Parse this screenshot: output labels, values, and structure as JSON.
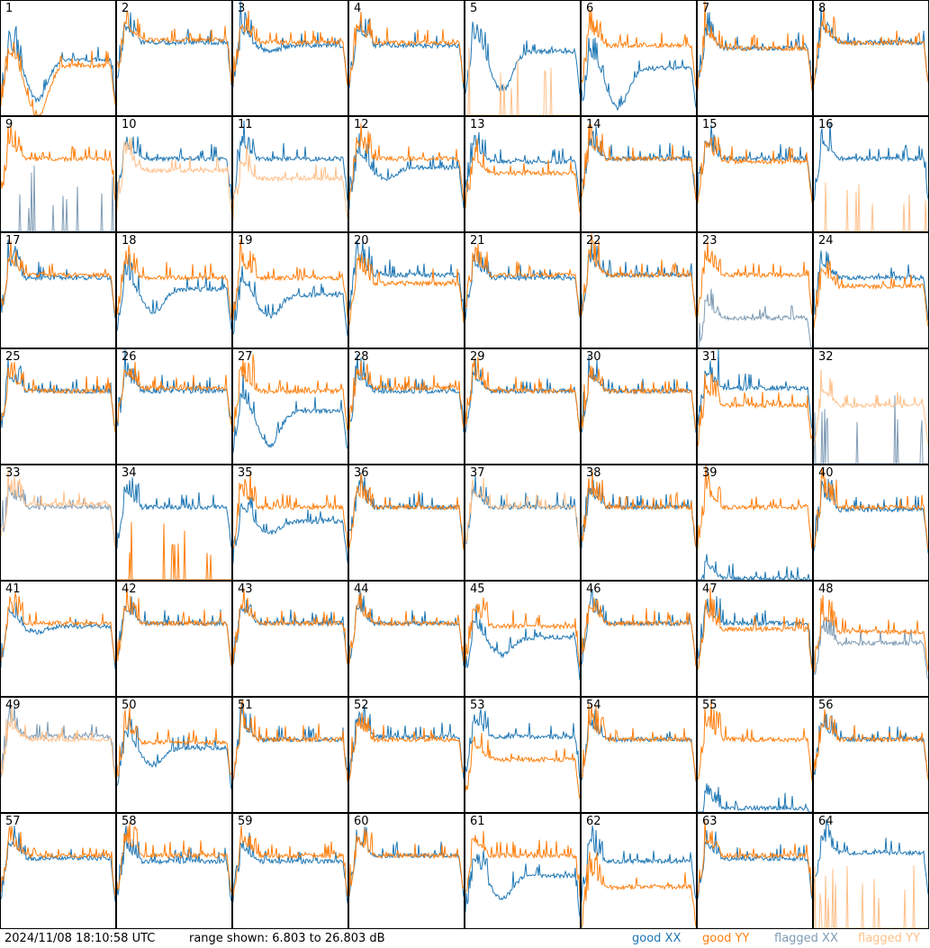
{
  "footer": {
    "timestamp": "2024/11/08 18:10:58 UTC",
    "range": "range shown: 6.803 to 26.803 dB",
    "legend": {
      "good_xx": "good XX",
      "good_yy": "good YY",
      "flagged_xx": "flagged XX",
      "flagged_yy": "flagged YY"
    }
  },
  "colors": {
    "good_xx": "#1f77b4",
    "good_yy": "#ff7f0e",
    "flagged_xx": "#7f9bb4",
    "flagged_yy": "#ffc08a"
  },
  "chart_data": {
    "type": "line",
    "ylim": [
      6.803,
      26.803
    ],
    "grid": false,
    "legend_placement": "bottom-right",
    "layout": {
      "rows": 8,
      "cols": 8
    },
    "panels": [
      {
        "label": "1",
        "xx": "good",
        "yy": "good",
        "xx_level": 16.5,
        "yy_level": 15.5,
        "xx_dip": 7,
        "yy_dip": 9
      },
      {
        "label": "2",
        "xx": "good",
        "yy": "good",
        "xx_level": 19.5,
        "yy_level": 20,
        "xx_dip": 0,
        "yy_dip": 0
      },
      {
        "label": "3",
        "xx": "good",
        "yy": "good",
        "xx_level": 19,
        "yy_level": 19.5,
        "xx_dip": 1,
        "yy_dip": 0
      },
      {
        "label": "4",
        "xx": "good",
        "yy": "good",
        "xx_level": 19,
        "yy_level": 19.5,
        "xx_dip": 0,
        "yy_dip": 0
      },
      {
        "label": "5",
        "xx": "good",
        "yy": "flagged_spikes_good",
        "xx_level": 18,
        "yy_level": 7,
        "xx_dip": 7,
        "yy_dip": 0
      },
      {
        "label": "6",
        "xx": "good",
        "yy": "good",
        "xx_level": 15,
        "yy_level": 19,
        "xx_dip": 7,
        "yy_dip": 0
      },
      {
        "label": "7",
        "xx": "good",
        "yy": "good",
        "xx_level": 18.5,
        "yy_level": 18.5,
        "xx_dip": 0,
        "yy_dip": 0
      },
      {
        "label": "8",
        "xx": "good",
        "yy": "good",
        "xx_level": 19.5,
        "yy_level": 19.5,
        "xx_dip": 0,
        "yy_dip": 0
      },
      {
        "label": "9",
        "xx": "flagged",
        "yy": "good",
        "xx_level": 7.5,
        "yy_level": 19.5,
        "xx_dip": 0,
        "yy_dip": 0
      },
      {
        "label": "10",
        "xx": "good",
        "yy": "flagged",
        "xx_level": 19.5,
        "yy_level": 17.5,
        "xx_dip": 0,
        "yy_dip": 0
      },
      {
        "label": "11",
        "xx": "good",
        "yy": "flagged",
        "xx_level": 19.5,
        "yy_level": 16,
        "xx_dip": 0,
        "yy_dip": 0
      },
      {
        "label": "12",
        "xx": "good",
        "yy": "good",
        "xx_level": 18,
        "yy_level": 19.5,
        "xx_dip": 2,
        "yy_dip": 0
      },
      {
        "label": "13",
        "xx": "good",
        "yy": "good",
        "xx_level": 19,
        "yy_level": 17,
        "xx_dip": 0,
        "yy_dip": 0
      },
      {
        "label": "14",
        "xx": "good",
        "yy": "good",
        "xx_level": 19.5,
        "yy_level": 19.5,
        "xx_dip": 0,
        "yy_dip": 0
      },
      {
        "label": "15",
        "xx": "good",
        "yy": "good",
        "xx_level": 19.5,
        "yy_level": 19,
        "xx_dip": 0,
        "yy_dip": 0
      },
      {
        "label": "16",
        "xx": "good",
        "yy": "flagged_spikes",
        "xx_level": 19.5,
        "yy_level": 7,
        "xx_dip": 0,
        "yy_dip": 0
      },
      {
        "label": "17",
        "xx": "good",
        "yy": "good",
        "xx_level": 19,
        "yy_level": 19.5,
        "xx_dip": 0,
        "yy_dip": 0
      },
      {
        "label": "18",
        "xx": "good",
        "yy": "good",
        "xx_level": 17,
        "yy_level": 19,
        "xx_dip": 4,
        "yy_dip": 0
      },
      {
        "label": "19",
        "xx": "good",
        "yy": "good",
        "xx_level": 16,
        "yy_level": 19,
        "xx_dip": 4,
        "yy_dip": 0
      },
      {
        "label": "20",
        "xx": "good",
        "yy": "good",
        "xx_level": 19.5,
        "yy_level": 18,
        "xx_dip": 0,
        "yy_dip": 0
      },
      {
        "label": "21",
        "xx": "good",
        "yy": "good",
        "xx_level": 19,
        "yy_level": 19.5,
        "xx_dip": 0,
        "yy_dip": 0
      },
      {
        "label": "22",
        "xx": "good",
        "yy": "good",
        "xx_level": 19.5,
        "yy_level": 19.5,
        "xx_dip": 0,
        "yy_dip": 0
      },
      {
        "label": "23",
        "xx": "flagged",
        "yy": "good",
        "xx_level": 12,
        "yy_level": 19.5,
        "xx_dip": 0,
        "yy_dip": 0
      },
      {
        "label": "24",
        "xx": "good",
        "yy": "good",
        "xx_level": 19,
        "yy_level": 17.5,
        "xx_dip": 0,
        "yy_dip": 0
      },
      {
        "label": "25",
        "xx": "good",
        "yy": "good",
        "xx_level": 19.5,
        "yy_level": 19.5,
        "xx_dip": 0,
        "yy_dip": 0
      },
      {
        "label": "26",
        "xx": "good",
        "yy": "good",
        "xx_level": 19.5,
        "yy_level": 20,
        "xx_dip": 0,
        "yy_dip": 0
      },
      {
        "label": "27",
        "xx": "good",
        "yy": "good",
        "xx_level": 16,
        "yy_level": 19.5,
        "xx_dip": 6,
        "yy_dip": 0
      },
      {
        "label": "28",
        "xx": "good",
        "yy": "good",
        "xx_level": 19.5,
        "yy_level": 20,
        "xx_dip": 0,
        "yy_dip": 0
      },
      {
        "label": "29",
        "xx": "good",
        "yy": "good",
        "xx_level": 19.5,
        "yy_level": 19.5,
        "xx_dip": 0,
        "yy_dip": 0
      },
      {
        "label": "30",
        "xx": "good",
        "yy": "good",
        "xx_level": 19.5,
        "yy_level": 19.5,
        "xx_dip": 0,
        "yy_dip": 0
      },
      {
        "label": "31",
        "xx": "good",
        "yy": "good",
        "xx_level": 20,
        "yy_level": 17,
        "xx_dip": 0,
        "yy_dip": 0
      },
      {
        "label": "32",
        "xx": "flagged",
        "yy": "flagged",
        "xx_level": 7,
        "yy_level": 17,
        "xx_dip": 0,
        "yy_dip": 0
      },
      {
        "label": "33",
        "xx": "flagged",
        "yy": "flagged",
        "xx_level": 19.5,
        "yy_level": 20,
        "xx_dip": 0,
        "yy_dip": 0
      },
      {
        "label": "34",
        "xx": "good",
        "yy": "good",
        "xx_level": 19.5,
        "yy_level": 7.5,
        "xx_dip": 0,
        "yy_dip": 0
      },
      {
        "label": "35",
        "xx": "good",
        "yy": "good",
        "xx_level": 17,
        "yy_level": 19.5,
        "xx_dip": 2,
        "yy_dip": 0
      },
      {
        "label": "36",
        "xx": "good",
        "yy": "good",
        "xx_level": 19.5,
        "yy_level": 19.5,
        "xx_dip": 0,
        "yy_dip": 0
      },
      {
        "label": "37",
        "xx": "good",
        "yy": "flagged",
        "xx_level": 19.5,
        "yy_level": 19.5,
        "xx_dip": 0,
        "yy_dip": 0
      },
      {
        "label": "38",
        "xx": "good",
        "yy": "good",
        "xx_level": 19.5,
        "yy_level": 19.5,
        "xx_dip": 0,
        "yy_dip": 0
      },
      {
        "label": "39",
        "xx": "good",
        "yy": "good",
        "xx_level": 7,
        "yy_level": 19.5,
        "xx_dip": 0,
        "yy_dip": 0
      },
      {
        "label": "40",
        "xx": "good",
        "yy": "good",
        "xx_level": 19,
        "yy_level": 19.5,
        "xx_dip": 0,
        "yy_dip": 0
      },
      {
        "label": "41",
        "xx": "good",
        "yy": "good",
        "xx_level": 19,
        "yy_level": 19.5,
        "xx_dip": 1,
        "yy_dip": 0
      },
      {
        "label": "42",
        "xx": "good",
        "yy": "good",
        "xx_level": 19.5,
        "yy_level": 19.5,
        "xx_dip": 0,
        "yy_dip": 0
      },
      {
        "label": "43",
        "xx": "good",
        "yy": "good",
        "xx_level": 19.5,
        "yy_level": 19.5,
        "xx_dip": 0,
        "yy_dip": 0
      },
      {
        "label": "44",
        "xx": "good",
        "yy": "good",
        "xx_level": 19.5,
        "yy_level": 19.5,
        "xx_dip": 0,
        "yy_dip": 0
      },
      {
        "label": "45",
        "xx": "good",
        "yy": "good",
        "xx_level": 17,
        "yy_level": 19,
        "xx_dip": 3,
        "yy_dip": 0
      },
      {
        "label": "46",
        "xx": "good",
        "yy": "good",
        "xx_level": 19.5,
        "yy_level": 19.5,
        "xx_dip": 0,
        "yy_dip": 0
      },
      {
        "label": "47",
        "xx": "good",
        "yy": "good",
        "xx_level": 19.5,
        "yy_level": 18.5,
        "xx_dip": 0,
        "yy_dip": 0
      },
      {
        "label": "48",
        "xx": "flagged",
        "yy": "good",
        "xx_level": 16,
        "yy_level": 18,
        "xx_dip": 0,
        "yy_dip": 0
      },
      {
        "label": "49",
        "xx": "flagged",
        "yy": "flagged",
        "xx_level": 20,
        "yy_level": 19.5,
        "xx_dip": 0,
        "yy_dip": 0
      },
      {
        "label": "50",
        "xx": "good",
        "yy": "good",
        "xx_level": 18,
        "yy_level": 19,
        "xx_dip": 3,
        "yy_dip": 0
      },
      {
        "label": "51",
        "xx": "good",
        "yy": "good",
        "xx_level": 19.5,
        "yy_level": 19.5,
        "xx_dip": 0,
        "yy_dip": 0
      },
      {
        "label": "52",
        "xx": "good",
        "yy": "good",
        "xx_level": 20,
        "yy_level": 19.5,
        "xx_dip": 0,
        "yy_dip": 0
      },
      {
        "label": "53",
        "xx": "good",
        "yy": "good",
        "xx_level": 20,
        "yy_level": 16,
        "xx_dip": 0,
        "yy_dip": 0
      },
      {
        "label": "54",
        "xx": "good",
        "yy": "good",
        "xx_level": 19.5,
        "yy_level": 19.5,
        "xx_dip": 0,
        "yy_dip": 0
      },
      {
        "label": "55",
        "xx": "good",
        "yy": "good",
        "xx_level": 7.5,
        "yy_level": 19.5,
        "xx_dip": 0,
        "yy_dip": 0
      },
      {
        "label": "56",
        "xx": "good",
        "yy": "good",
        "xx_level": 19.5,
        "yy_level": 19.5,
        "xx_dip": 0,
        "yy_dip": 0
      },
      {
        "label": "57",
        "xx": "good",
        "yy": "good",
        "xx_level": 19,
        "yy_level": 19.5,
        "xx_dip": 0,
        "yy_dip": 0
      },
      {
        "label": "58",
        "xx": "good",
        "yy": "good",
        "xx_level": 18.5,
        "yy_level": 19.5,
        "xx_dip": 0,
        "yy_dip": 0
      },
      {
        "label": "59",
        "xx": "good",
        "yy": "good",
        "xx_level": 18.5,
        "yy_level": 19.5,
        "xx_dip": 0,
        "yy_dip": 0
      },
      {
        "label": "60",
        "xx": "good",
        "yy": "good",
        "xx_level": 19.5,
        "yy_level": 19.5,
        "xx_dip": 0,
        "yy_dip": 0
      },
      {
        "label": "61",
        "xx": "good",
        "yy": "good",
        "xx_level": 16,
        "yy_level": 19.5,
        "xx_dip": 4,
        "yy_dip": 0
      },
      {
        "label": "62",
        "xx": "good",
        "yy": "good",
        "xx_level": 18.5,
        "yy_level": 14,
        "xx_dip": 0,
        "yy_dip": 0
      },
      {
        "label": "63",
        "xx": "good",
        "yy": "good",
        "xx_level": 19,
        "yy_level": 19.5,
        "xx_dip": 0,
        "yy_dip": 0
      },
      {
        "label": "64",
        "xx": "good",
        "yy": "flagged_spikes",
        "xx_level": 20,
        "yy_level": 7,
        "xx_dip": 0,
        "yy_dip": 0
      }
    ]
  }
}
